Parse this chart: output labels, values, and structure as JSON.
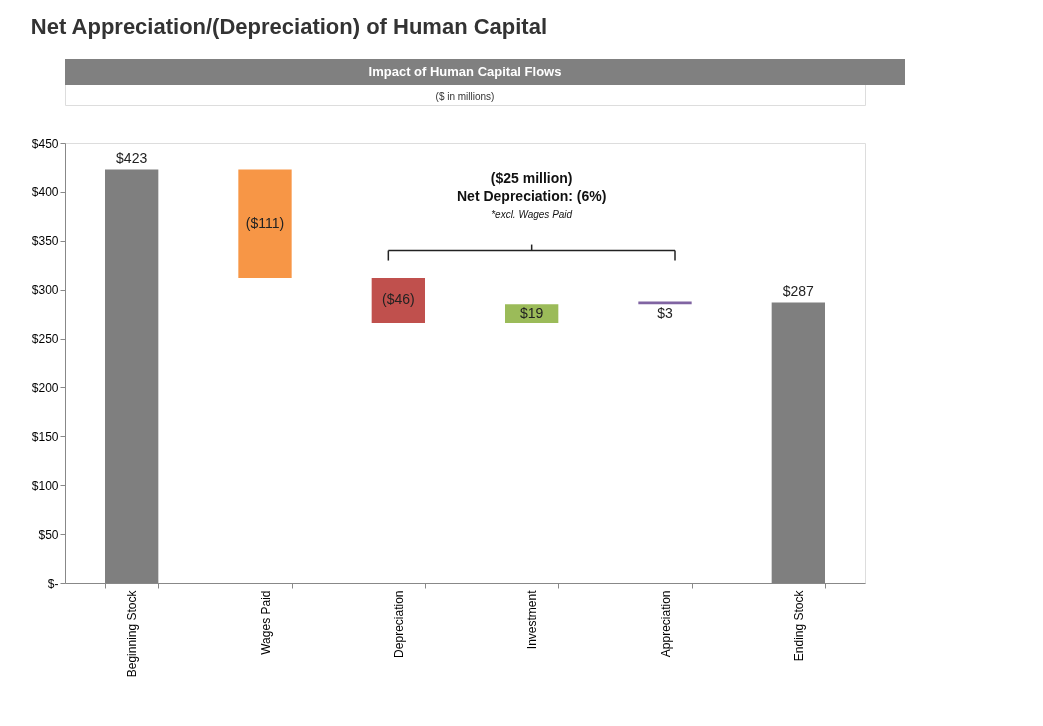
{
  "chart_data": {
    "type": "bar",
    "title": "Net Appreciation/(Depreciation) of Human Capital",
    "subtitle": "Impact of Human Capital Flows",
    "ylabel": "($ in millions)",
    "categories": [
      "Beginning Stock",
      "Wages Paid",
      "Depreciation",
      "Investment",
      "Appreciation",
      "Ending Stock"
    ],
    "values": [
      423,
      -111,
      -46,
      19,
      3,
      287
    ],
    "base": [
      0,
      423,
      312,
      266,
      285,
      0
    ],
    "colors": [
      "#7f7f7f",
      "#f79646",
      "#c0504d",
      "#9bbb59",
      "#8064a2",
      "#7f7f7f"
    ],
    "value_labels": [
      "$423",
      "($111)",
      "($46)",
      "$19",
      "$3",
      "$287"
    ],
    "ylim": [
      0,
      450
    ],
    "yticks": [
      {
        "value": 0,
        "label": "$-"
      },
      {
        "value": 50,
        "label": "$50"
      },
      {
        "value": 100,
        "label": "$100"
      },
      {
        "value": 150,
        "label": "$150"
      },
      {
        "value": 200,
        "label": "$200"
      },
      {
        "value": 250,
        "label": "$250"
      },
      {
        "value": 300,
        "label": "$300"
      },
      {
        "value": 350,
        "label": "$350"
      },
      {
        "value": 400,
        "label": "$400"
      },
      {
        "value": 450,
        "label": "$450"
      }
    ],
    "grid": false,
    "legend": false,
    "annotations": [
      "($25 million)",
      "Net Depreciation: (6%)",
      "*excl. Wages Paid"
    ]
  }
}
